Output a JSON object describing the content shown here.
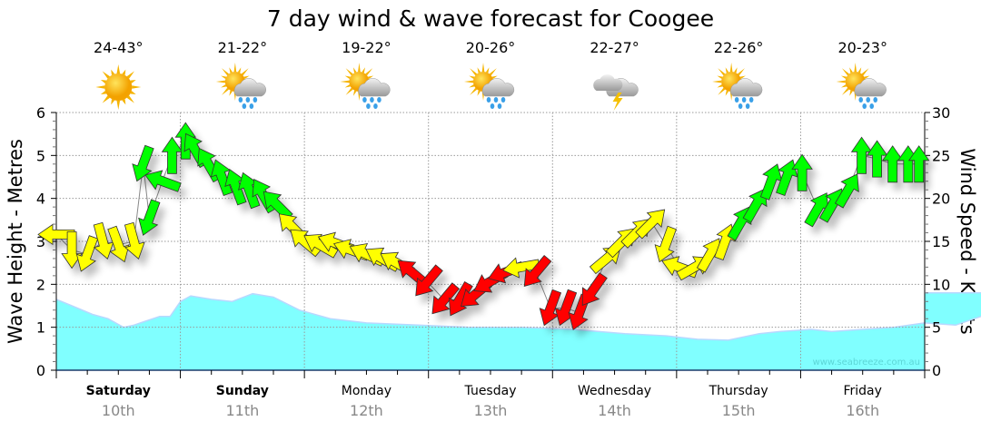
{
  "chart_data": {
    "type": "area+wind-arrows",
    "title": "7 day wind & wave forecast for Coogee",
    "ylabel_left": "Wave Height - Metres",
    "ylabel_right": "Wind Speed - Knots",
    "ylim_left": [
      0,
      6
    ],
    "ylim_right": [
      0,
      30
    ],
    "yticks_left": [
      0,
      1,
      2,
      3,
      4,
      5,
      6
    ],
    "yticks_right": [
      0,
      5,
      10,
      15,
      20,
      25,
      30
    ],
    "grid": true,
    "watermark": "www.seabreeze.com.au",
    "days": [
      {
        "day": "Saturday",
        "date": "10th",
        "bold": true,
        "temp": "24-43°",
        "icon": "sunny"
      },
      {
        "day": "Sunday",
        "date": "11th",
        "bold": true,
        "temp": "21-22°",
        "icon": "sun-cloud-rain"
      },
      {
        "day": "Monday",
        "date": "12th",
        "bold": false,
        "temp": "19-22°",
        "icon": "sun-cloud-rain"
      },
      {
        "day": "Tuesday",
        "date": "13th",
        "bold": false,
        "temp": "20-26°",
        "icon": "sun-cloud-showers"
      },
      {
        "day": "Wednesday",
        "date": "14th",
        "bold": false,
        "temp": "22-27°",
        "icon": "storm"
      },
      {
        "day": "Thursday",
        "date": "15th",
        "bold": false,
        "temp": "22-26°",
        "icon": "sun-cloud-rain"
      },
      {
        "day": "Friday",
        "date": "16th",
        "bold": false,
        "temp": "20-23°",
        "icon": "sun-cloud-rain"
      }
    ],
    "wave_series": {
      "name": "Wave Height (m)",
      "color": "#80ffff",
      "hours": [
        0,
        3,
        7,
        10,
        13,
        15,
        17,
        20,
        22,
        24,
        26,
        30,
        34,
        38,
        42,
        47,
        53,
        60,
        70,
        80,
        90,
        100,
        110,
        118,
        124,
        130,
        136,
        140,
        146,
        150,
        156,
        162,
        168,
        174,
        180,
        186,
        190,
        194,
        198,
        202,
        205,
        210,
        216,
        222,
        230,
        236,
        238,
        160
      ],
      "metres": [
        1.65,
        1.5,
        1.3,
        1.2,
        1.0,
        1.05,
        1.13,
        1.25,
        1.25,
        1.6,
        1.73,
        1.65,
        1.6,
        1.78,
        1.7,
        1.4,
        1.2,
        1.1,
        1.05,
        1.0,
        1.0,
        0.95,
        0.85,
        0.8,
        0.72,
        0.7,
        0.85,
        0.9,
        0.95,
        0.9,
        0.95,
        1.0,
        1.1,
        1.05,
        1.3,
        1.5,
        1.4,
        1.35,
        1.6,
        1.85,
        1.82,
        1.8,
        1.8,
        1.8,
        1.8,
        1.8,
        1.8,
        1.0
      ]
    },
    "wind_series": {
      "name": "Wind (knots, arrow direction °)",
      "colors": {
        "green": "#00ff00",
        "yellow": "#ffff00",
        "red": "#ff0000"
      },
      "points": [
        [
          0,
          15.8,
          270,
          "yellow"
        ],
        [
          3,
          14,
          180,
          "yellow"
        ],
        [
          6,
          13.5,
          200,
          "yellow"
        ],
        [
          9,
          15,
          165,
          "yellow"
        ],
        [
          12,
          14.6,
          160,
          "yellow"
        ],
        [
          15,
          15,
          165,
          "yellow"
        ],
        [
          16.8,
          24,
          200,
          "green"
        ],
        [
          18,
          17.7,
          200,
          "green"
        ],
        [
          20.5,
          22,
          290,
          "green"
        ],
        [
          22.4,
          25,
          0,
          "green"
        ],
        [
          25,
          26.7,
          0,
          "green"
        ],
        [
          26.8,
          25.7,
          330,
          "green"
        ],
        [
          29.4,
          24,
          330,
          "green"
        ],
        [
          32,
          22.5,
          340,
          "green"
        ],
        [
          34.7,
          21.4,
          340,
          "green"
        ],
        [
          37.3,
          21,
          340,
          "green"
        ],
        [
          40,
          20.4,
          330,
          "green"
        ],
        [
          42.6,
          19.3,
          315,
          "green"
        ],
        [
          45.6,
          16.7,
          315,
          "yellow"
        ],
        [
          48,
          15,
          310,
          "yellow"
        ],
        [
          51,
          14.6,
          300,
          "yellow"
        ],
        [
          54,
          14.8,
          290,
          "yellow"
        ],
        [
          57,
          14,
          290,
          "yellow"
        ],
        [
          60,
          13.5,
          295,
          "yellow"
        ],
        [
          63,
          13,
          300,
          "yellow"
        ],
        [
          65.8,
          12.5,
          300,
          "yellow"
        ],
        [
          68.8,
          11.4,
          310,
          "red"
        ],
        [
          71.8,
          10.3,
          220,
          "red"
        ],
        [
          75,
          8.2,
          220,
          "red"
        ],
        [
          78,
          8.2,
          210,
          "red"
        ],
        [
          81,
          8.8,
          230,
          "red"
        ],
        [
          83.9,
          10.3,
          240,
          "red"
        ],
        [
          86.9,
          11.4,
          250,
          "red"
        ],
        [
          89.9,
          12,
          260,
          "yellow"
        ],
        [
          92.8,
          11.4,
          220,
          "red"
        ],
        [
          95.6,
          7.2,
          200,
          "red"
        ],
        [
          98.6,
          7.2,
          200,
          "red"
        ],
        [
          101.2,
          6.7,
          200,
          "red"
        ],
        [
          103.8,
          9.3,
          215,
          "red"
        ],
        [
          106.5,
          13,
          50,
          "yellow"
        ],
        [
          109.5,
          15,
          45,
          "yellow"
        ],
        [
          112.4,
          16.1,
          45,
          "yellow"
        ],
        [
          115.2,
          17.2,
          45,
          "yellow"
        ],
        [
          117.9,
          14.6,
          200,
          "yellow"
        ],
        [
          120.5,
          12,
          290,
          "yellow"
        ],
        [
          123.5,
          12,
          60,
          "yellow"
        ],
        [
          126.5,
          13.5,
          30,
          "yellow"
        ],
        [
          129.4,
          15,
          20,
          "yellow"
        ],
        [
          132.4,
          17.2,
          30,
          "green"
        ],
        [
          135.4,
          19.3,
          30,
          "green"
        ],
        [
          138.3,
          22,
          20,
          "green"
        ],
        [
          141.3,
          22.5,
          20,
          "green"
        ],
        [
          144.3,
          23,
          0,
          "green"
        ],
        [
          147.3,
          18.8,
          30,
          "green"
        ],
        [
          150.2,
          19.3,
          30,
          "green"
        ],
        [
          153.2,
          21,
          30,
          "green"
        ],
        [
          155.8,
          25,
          0,
          "green"
        ],
        [
          158.8,
          24.6,
          0,
          "green"
        ],
        [
          161.8,
          24,
          0,
          "green"
        ],
        [
          164.8,
          24,
          0,
          "green"
        ],
        [
          166.9,
          24,
          0,
          "green"
        ]
      ]
    }
  }
}
